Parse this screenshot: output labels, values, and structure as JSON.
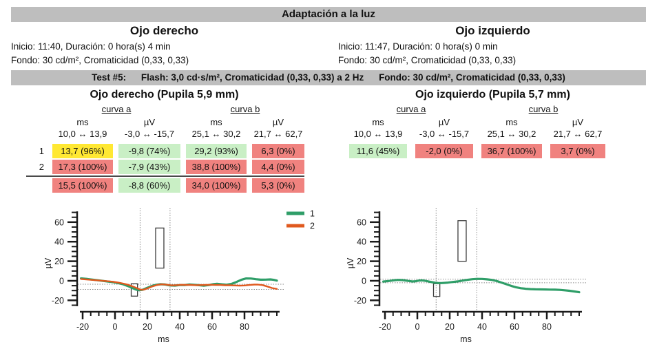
{
  "title": "Adaptación a la luz",
  "eyes": [
    {
      "name": "Ojo derecho",
      "inicio": "Inicio: 11:40, Duración: 0 hora(s) 4 min",
      "fondo": "Fondo: 30 cd/m², Cromaticidad (0,33, 0,33)"
    },
    {
      "name": "Ojo izquierdo",
      "inicio": "Inicio: 11:47, Duración: 0 hora(s) 0 min",
      "fondo": "Fondo: 30 cd/m², Cromaticidad (0,33, 0,33)"
    }
  ],
  "test_bar": {
    "label": "Test #5:",
    "flash": "Flash: 3,0 cd·s/m², Cromaticidad (0,33, 0,33) a 2 Hz",
    "fondo": "Fondo: 30 cd/m², Cromaticidad (0,33, 0,33)"
  },
  "colors": {
    "bar_gray": "#bebebe",
    "cell": {
      "yellow": "#ffe833",
      "green": "#c9efc5",
      "red": "#f0827f"
    },
    "line_1": "#2f9e68",
    "line_2": "#e0591e",
    "axis": "#1a1a1a",
    "marker": "#8a8a8a",
    "box_stroke": "#3c3c3c"
  },
  "sections": [
    {
      "title": "Ojo derecho (Pupila 5,9 mm)",
      "has_label_col": true,
      "curve_groups": [
        "curva a",
        "curva b"
      ],
      "col_units": [
        "ms",
        "µV",
        "ms",
        "µV"
      ],
      "ranges": [
        "10,0 ↔ 13,9",
        "-3,0 ↔ -15,7",
        "25,1 ↔ 30,2",
        "21,7 ↔ 62,7"
      ],
      "rows": [
        {
          "label": "1",
          "cells": [
            {
              "text": "13,7 (96%)",
              "status": "yellow"
            },
            {
              "text": "-9,8 (74%)",
              "status": "green"
            },
            {
              "text": "29,2 (93%)",
              "status": "green"
            },
            {
              "text": "6,3 (0%)",
              "status": "red"
            }
          ]
        },
        {
          "label": "2",
          "cells": [
            {
              "text": "17,3 (100%)",
              "status": "red"
            },
            {
              "text": "-7,9 (43%)",
              "status": "green"
            },
            {
              "text": "38,8 (100%)",
              "status": "red"
            },
            {
              "text": "4,4 (0%)",
              "status": "red"
            }
          ]
        }
      ],
      "summary_row": {
        "cells": [
          {
            "text": "15,5 (100%)",
            "status": "red"
          },
          {
            "text": "-8,8 (60%)",
            "status": "green"
          },
          {
            "text": "34,0 (100%)",
            "status": "red"
          },
          {
            "text": "5,3 (0%)",
            "status": "red"
          }
        ]
      }
    },
    {
      "title": "Ojo izquierdo (Pupila 5,7 mm)",
      "has_label_col": false,
      "curve_groups": [
        "curva a",
        "curva b"
      ],
      "col_units": [
        "ms",
        "µV",
        "ms",
        "µV"
      ],
      "ranges": [
        "10,0 ↔ 13,9",
        "-3,0 ↔ -15,7",
        "25,1 ↔ 30,2",
        "21,7 ↔ 62,7"
      ],
      "rows": [
        {
          "label": "",
          "cells": [
            {
              "text": "11,6 (45%)",
              "status": "green"
            },
            {
              "text": "-2,0 (0%)",
              "status": "red"
            },
            {
              "text": "36,7 (100%)",
              "status": "red"
            },
            {
              "text": "3,7 (0%)",
              "status": "red"
            }
          ]
        }
      ],
      "summary_row": null
    }
  ],
  "chart_data": [
    {
      "type": "line",
      "eye": "Ojo derecho",
      "xlabel": "ms",
      "ylabel": "µV",
      "xlim": [
        -21,
        101
      ],
      "ylim": [
        -27,
        72
      ],
      "x_ticks": [
        -20,
        0,
        20,
        40,
        60,
        80
      ],
      "y_ticks": [
        -20,
        0,
        20,
        40,
        60
      ],
      "minor_tick_step": 5,
      "grid": false,
      "legend_visible": true,
      "legend_position": "top-right",
      "marker_vlines_ms": [
        15.5,
        34.0
      ],
      "marker_hlines_uv": [
        -3.5,
        -8.8
      ],
      "normative_boxes": [
        {
          "x_ms": [
            10.0,
            13.9
          ],
          "y_uv": [
            -15.7,
            -3.0
          ]
        },
        {
          "x_ms": [
            25.1,
            30.2
          ],
          "y_uv": [
            13.0,
            54.0
          ]
        }
      ],
      "series": [
        {
          "name": "1",
          "color": "#2f9e68",
          "points": [
            [
              -21,
              2.5
            ],
            [
              -17,
              1.8
            ],
            [
              -13,
              1.0
            ],
            [
              -9,
              0.2
            ],
            [
              -5,
              -0.6
            ],
            [
              -1,
              -1.4
            ],
            [
              2,
              -2.4
            ],
            [
              5,
              -3.6
            ],
            [
              8,
              -5.4
            ],
            [
              11,
              -7.6
            ],
            [
              13,
              -9.0
            ],
            [
              15,
              -9.7
            ],
            [
              17,
              -9.2
            ],
            [
              19,
              -7.8
            ],
            [
              22,
              -5.8
            ],
            [
              25,
              -4.2
            ],
            [
              28,
              -3.5
            ],
            [
              31,
              -3.8
            ],
            [
              34,
              -4.8
            ],
            [
              37,
              -4.9
            ],
            [
              40,
              -4.4
            ],
            [
              43,
              -4.4
            ],
            [
              46,
              -3.8
            ],
            [
              49,
              -4.1
            ],
            [
              52,
              -4.5
            ],
            [
              55,
              -5.0
            ],
            [
              58,
              -4.4
            ],
            [
              61,
              -3.4
            ],
            [
              63,
              -3.0
            ],
            [
              66,
              -3.6
            ],
            [
              69,
              -4.0
            ],
            [
              72,
              -3.2
            ],
            [
              75,
              -1.2
            ],
            [
              78,
              1.0
            ],
            [
              81,
              2.4
            ],
            [
              84,
              2.3
            ],
            [
              87,
              1.6
            ],
            [
              90,
              1.1
            ],
            [
              93,
              1.2
            ],
            [
              96,
              1.4
            ],
            [
              98,
              1.0
            ],
            [
              100,
              0.2
            ]
          ]
        },
        {
          "name": "2",
          "color": "#e0591e",
          "points": [
            [
              -21,
              1.8
            ],
            [
              -17,
              1.3
            ],
            [
              -13,
              0.8
            ],
            [
              -9,
              0.2
            ],
            [
              -5,
              -0.4
            ],
            [
              -1,
              -1.0
            ],
            [
              2,
              -1.8
            ],
            [
              5,
              -2.8
            ],
            [
              8,
              -4.0
            ],
            [
              11,
              -5.8
            ],
            [
              14,
              -7.9
            ],
            [
              16,
              -9.2
            ],
            [
              18,
              -9.0
            ],
            [
              20,
              -7.8
            ],
            [
              23,
              -5.8
            ],
            [
              26,
              -4.3
            ],
            [
              29,
              -3.6
            ],
            [
              32,
              -4.0
            ],
            [
              35,
              -4.7
            ],
            [
              38,
              -4.5
            ],
            [
              41,
              -4.1
            ],
            [
              44,
              -4.2
            ],
            [
              47,
              -4.3
            ],
            [
              50,
              -4.5
            ],
            [
              53,
              -4.4
            ],
            [
              56,
              -4.2
            ],
            [
              59,
              -4.1
            ],
            [
              62,
              -4.3
            ],
            [
              65,
              -4.3
            ],
            [
              68,
              -4.6
            ],
            [
              71,
              -4.6
            ],
            [
              74,
              -4.8
            ],
            [
              77,
              -5.0
            ],
            [
              80,
              -4.8
            ],
            [
              83,
              -4.3
            ],
            [
              86,
              -3.9
            ],
            [
              88,
              -3.8
            ],
            [
              91,
              -4.4
            ],
            [
              94,
              -5.8
            ],
            [
              97,
              -7.4
            ],
            [
              100,
              -8.3
            ]
          ]
        }
      ]
    },
    {
      "type": "line",
      "eye": "Ojo izquierdo",
      "xlabel": "ms",
      "ylabel": "µV",
      "xlim": [
        -21,
        101
      ],
      "ylim": [
        -27,
        72
      ],
      "x_ticks": [
        -20,
        0,
        20,
        40,
        60,
        80
      ],
      "y_ticks": [
        -20,
        0,
        20,
        40,
        60
      ],
      "minor_tick_step": 5,
      "grid": false,
      "legend_visible": false,
      "legend_position": "none",
      "marker_vlines_ms": [
        11.6,
        36.7
      ],
      "marker_hlines_uv": [
        1.7,
        -2.0
      ],
      "normative_boxes": [
        {
          "x_ms": [
            10.0,
            13.9
          ],
          "y_uv": [
            -16.0,
            -3.0
          ]
        },
        {
          "x_ms": [
            25.1,
            30.2
          ],
          "y_uv": [
            20.0,
            61.5
          ]
        }
      ],
      "series": [
        {
          "name": "1",
          "color": "#2f9e68",
          "points": [
            [
              -21,
              -0.8
            ],
            [
              -18,
              -0.3
            ],
            [
              -15,
              0.4
            ],
            [
              -12,
              0.9
            ],
            [
              -9,
              0.7
            ],
            [
              -6,
              -0.1
            ],
            [
              -3,
              -0.7
            ],
            [
              -1,
              -0.4
            ],
            [
              1,
              0.2
            ],
            [
              3,
              0.4
            ],
            [
              5,
              -0.1
            ],
            [
              7,
              -0.8
            ],
            [
              9,
              -1.4
            ],
            [
              11,
              -2.0
            ],
            [
              13,
              -2.3
            ],
            [
              15,
              -2.3
            ],
            [
              17,
              -2.1
            ],
            [
              19,
              -1.8
            ],
            [
              22,
              -1.2
            ],
            [
              25,
              -0.6
            ],
            [
              28,
              0.2
            ],
            [
              31,
              1.0
            ],
            [
              34,
              1.6
            ],
            [
              37,
              2.0
            ],
            [
              40,
              1.9
            ],
            [
              43,
              1.5
            ],
            [
              46,
              0.9
            ],
            [
              49,
              -0.2
            ],
            [
              52,
              -1.8
            ],
            [
              55,
              -3.5
            ],
            [
              58,
              -5.2
            ],
            [
              61,
              -6.6
            ],
            [
              64,
              -7.6
            ],
            [
              67,
              -8.2
            ],
            [
              70,
              -8.5
            ],
            [
              73,
              -8.7
            ],
            [
              76,
              -8.8
            ],
            [
              79,
              -8.9
            ],
            [
              82,
              -9.0
            ],
            [
              85,
              -9.1
            ],
            [
              88,
              -9.3
            ],
            [
              91,
              -9.7
            ],
            [
              94,
              -10.2
            ],
            [
              97,
              -10.9
            ],
            [
              100,
              -11.7
            ]
          ]
        }
      ]
    }
  ]
}
